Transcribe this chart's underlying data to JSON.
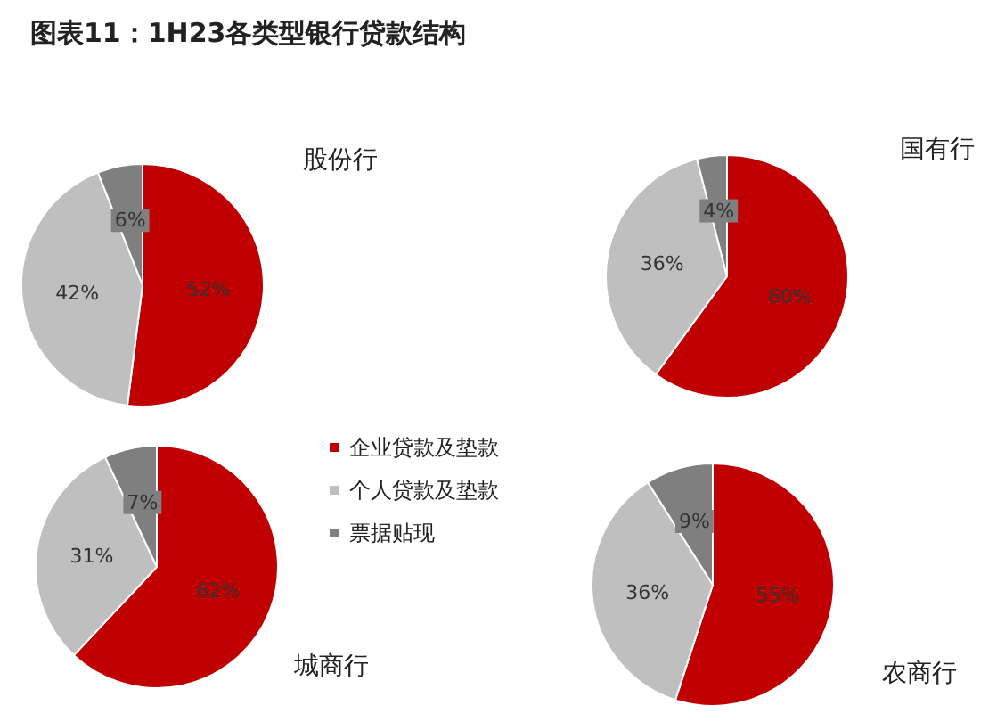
{
  "chart_data": [
    {
      "type": "pie",
      "title": "图表11：1H23各类型银行贷款结构",
      "subtitle": "股份行",
      "categories": [
        "企业贷款及垫款",
        "个人贷款及垫款",
        "票据贴现"
      ],
      "values": [
        52,
        42,
        6
      ],
      "value_labels": [
        "52%",
        "42%",
        "6%"
      ],
      "colors": [
        "#c00000",
        "#bfbfbf",
        "#7f7f7f"
      ],
      "legend": "right"
    },
    {
      "type": "pie",
      "subtitle": "国有行",
      "categories": [
        null,
        null,
        null
      ],
      "values": [
        60,
        36,
        4
      ],
      "value_labels": [
        "60%",
        "36%",
        "4%"
      ],
      "colors": [
        "#c00000",
        "#bfbfbf",
        "#7f7f7f"
      ]
    },
    {
      "type": "pie",
      "subtitle": "城商行",
      "categories": [
        null,
        null,
        null
      ],
      "values": [
        62,
        31,
        7
      ],
      "value_labels": [
        "62%",
        "31%",
        "7%"
      ],
      "colors": [
        "#c00000",
        "#bfbfbf",
        "#7f7f7f"
      ]
    },
    {
      "type": "pie",
      "subtitle": "农商行",
      "categories": [
        null,
        null,
        null
      ],
      "values": [
        55,
        36,
        9
      ],
      "value_labels": [
        "55%",
        "36%",
        "9%"
      ],
      "colors": [
        "#c00000",
        "#bfbfbf",
        "#7f7f7f"
      ]
    }
  ]
}
